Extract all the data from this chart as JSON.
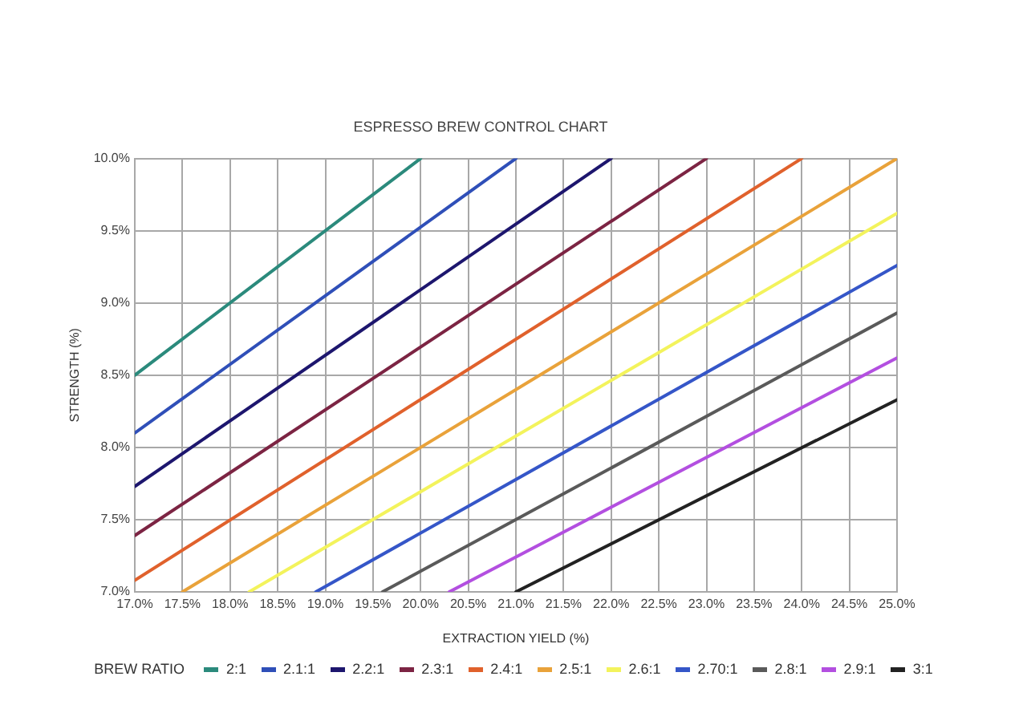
{
  "chart_data": {
    "type": "line",
    "title": "ESPRESSO BREW CONTROL CHART",
    "xlabel": "EXTRACTION YIELD (%)",
    "ylabel": "STRENGTH (%)",
    "legend_title": "BREW RATIO",
    "legend": "bottom",
    "grid": true,
    "marker": "none",
    "line_style": "solid",
    "xlim": [
      17,
      25
    ],
    "xticks": [
      {
        "value": 17,
        "label": "17.0%"
      },
      {
        "value": 17.5,
        "label": "17.5%"
      },
      {
        "value": 18,
        "label": "18.0%"
      },
      {
        "value": 18.5,
        "label": "18.5%"
      },
      {
        "value": 19,
        "label": "19.0%"
      },
      {
        "value": 19.5,
        "label": "19.5%"
      },
      {
        "value": 20,
        "label": "20.0%"
      },
      {
        "value": 20.5,
        "label": "20.5%"
      },
      {
        "value": 21,
        "label": "21.0%"
      },
      {
        "value": 21.5,
        "label": "21.5%"
      },
      {
        "value": 22,
        "label": "22.0%"
      },
      {
        "value": 22.5,
        "label": "22.5%"
      },
      {
        "value": 23,
        "label": "23.0%"
      },
      {
        "value": 23.5,
        "label": "23.5%"
      },
      {
        "value": 24,
        "label": "24.0%"
      },
      {
        "value": 24.5,
        "label": "24.5%"
      },
      {
        "value": 25,
        "label": "25.0%"
      }
    ],
    "ylim": [
      7,
      10
    ],
    "yticks": [
      {
        "value": 7,
        "label": "7.0%"
      },
      {
        "value": 7.5,
        "label": "7.5%"
      },
      {
        "value": 8,
        "label": "8.0%"
      },
      {
        "value": 8.5,
        "label": "8.5%"
      },
      {
        "value": 9,
        "label": "9.0%"
      },
      {
        "value": 9.5,
        "label": "9.5%"
      },
      {
        "value": 10,
        "label": "10.0%"
      }
    ],
    "series": [
      {
        "name": "2:1",
        "color": "#2b8a7c",
        "x": [
          17,
          20
        ],
        "values": [
          8.5,
          10
        ]
      },
      {
        "name": "2.1:1",
        "color": "#2f4fb8",
        "x": [
          17,
          21
        ],
        "values": [
          8.1,
          10
        ]
      },
      {
        "name": "2.2:1",
        "color": "#1d166e",
        "x": [
          17,
          22
        ],
        "values": [
          7.73,
          10
        ]
      },
      {
        "name": "2.3:1",
        "color": "#7c2443",
        "x": [
          17,
          23
        ],
        "values": [
          7.39,
          10
        ]
      },
      {
        "name": "2.4:1",
        "color": "#e0612c",
        "x": [
          17,
          24
        ],
        "values": [
          7.08,
          10
        ]
      },
      {
        "name": "2.5:1",
        "color": "#e9a23a",
        "x": [
          17.5,
          25
        ],
        "values": [
          7,
          10
        ]
      },
      {
        "name": "2.6:1",
        "color": "#f3f35c",
        "x": [
          18.2,
          25
        ],
        "values": [
          7,
          9.62
        ]
      },
      {
        "name": "2.70:1",
        "color": "#3556c8",
        "x": [
          18.9,
          25
        ],
        "values": [
          7,
          9.26
        ]
      },
      {
        "name": "2.8:1",
        "color": "#5a5a5a",
        "x": [
          19.6,
          25
        ],
        "values": [
          7,
          8.93
        ]
      },
      {
        "name": "2.9:1",
        "color": "#b34fe0",
        "x": [
          20.3,
          25
        ],
        "values": [
          7,
          8.62
        ]
      },
      {
        "name": "3:1",
        "color": "#222222",
        "x": [
          21,
          25
        ],
        "values": [
          7,
          8.33
        ]
      }
    ]
  }
}
